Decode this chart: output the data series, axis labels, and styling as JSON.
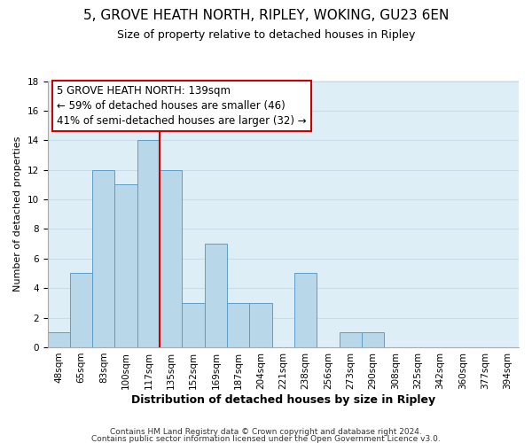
{
  "title1": "5, GROVE HEATH NORTH, RIPLEY, WOKING, GU23 6EN",
  "title2": "Size of property relative to detached houses in Ripley",
  "xlabel": "Distribution of detached houses by size in Ripley",
  "ylabel": "Number of detached properties",
  "bin_labels": [
    "48sqm",
    "65sqm",
    "83sqm",
    "100sqm",
    "117sqm",
    "135sqm",
    "152sqm",
    "169sqm",
    "187sqm",
    "204sqm",
    "221sqm",
    "238sqm",
    "256sqm",
    "273sqm",
    "290sqm",
    "308sqm",
    "325sqm",
    "342sqm",
    "360sqm",
    "377sqm",
    "394sqm"
  ],
  "bar_heights": [
    1,
    5,
    12,
    11,
    14,
    12,
    3,
    7,
    3,
    3,
    0,
    5,
    0,
    1,
    1,
    0,
    0,
    0,
    0,
    0,
    0
  ],
  "bar_color": "#b8d8ea",
  "bar_edge_color": "#5b9ec9",
  "highlight_line_color": "#cc0000",
  "annotation_title": "5 GROVE HEATH NORTH: 139sqm",
  "annotation_line1": "← 59% of detached houses are smaller (46)",
  "annotation_line2": "41% of semi-detached houses are larger (32) →",
  "annotation_box_color": "#ffffff",
  "annotation_box_edge": "#cc0000",
  "ylim": [
    0,
    18
  ],
  "yticks": [
    0,
    2,
    4,
    6,
    8,
    10,
    12,
    14,
    16,
    18
  ],
  "footer1": "Contains HM Land Registry data © Crown copyright and database right 2024.",
  "footer2": "Contains public sector information licensed under the Open Government Licence v3.0.",
  "grid_color": "#c8dcea",
  "background_color": "#ddeef6",
  "title1_fontsize": 11,
  "title2_fontsize": 9,
  "xlabel_fontsize": 9,
  "ylabel_fontsize": 8,
  "tick_fontsize": 7.5,
  "footer_fontsize": 6.5,
  "annotation_fontsize": 8.5
}
